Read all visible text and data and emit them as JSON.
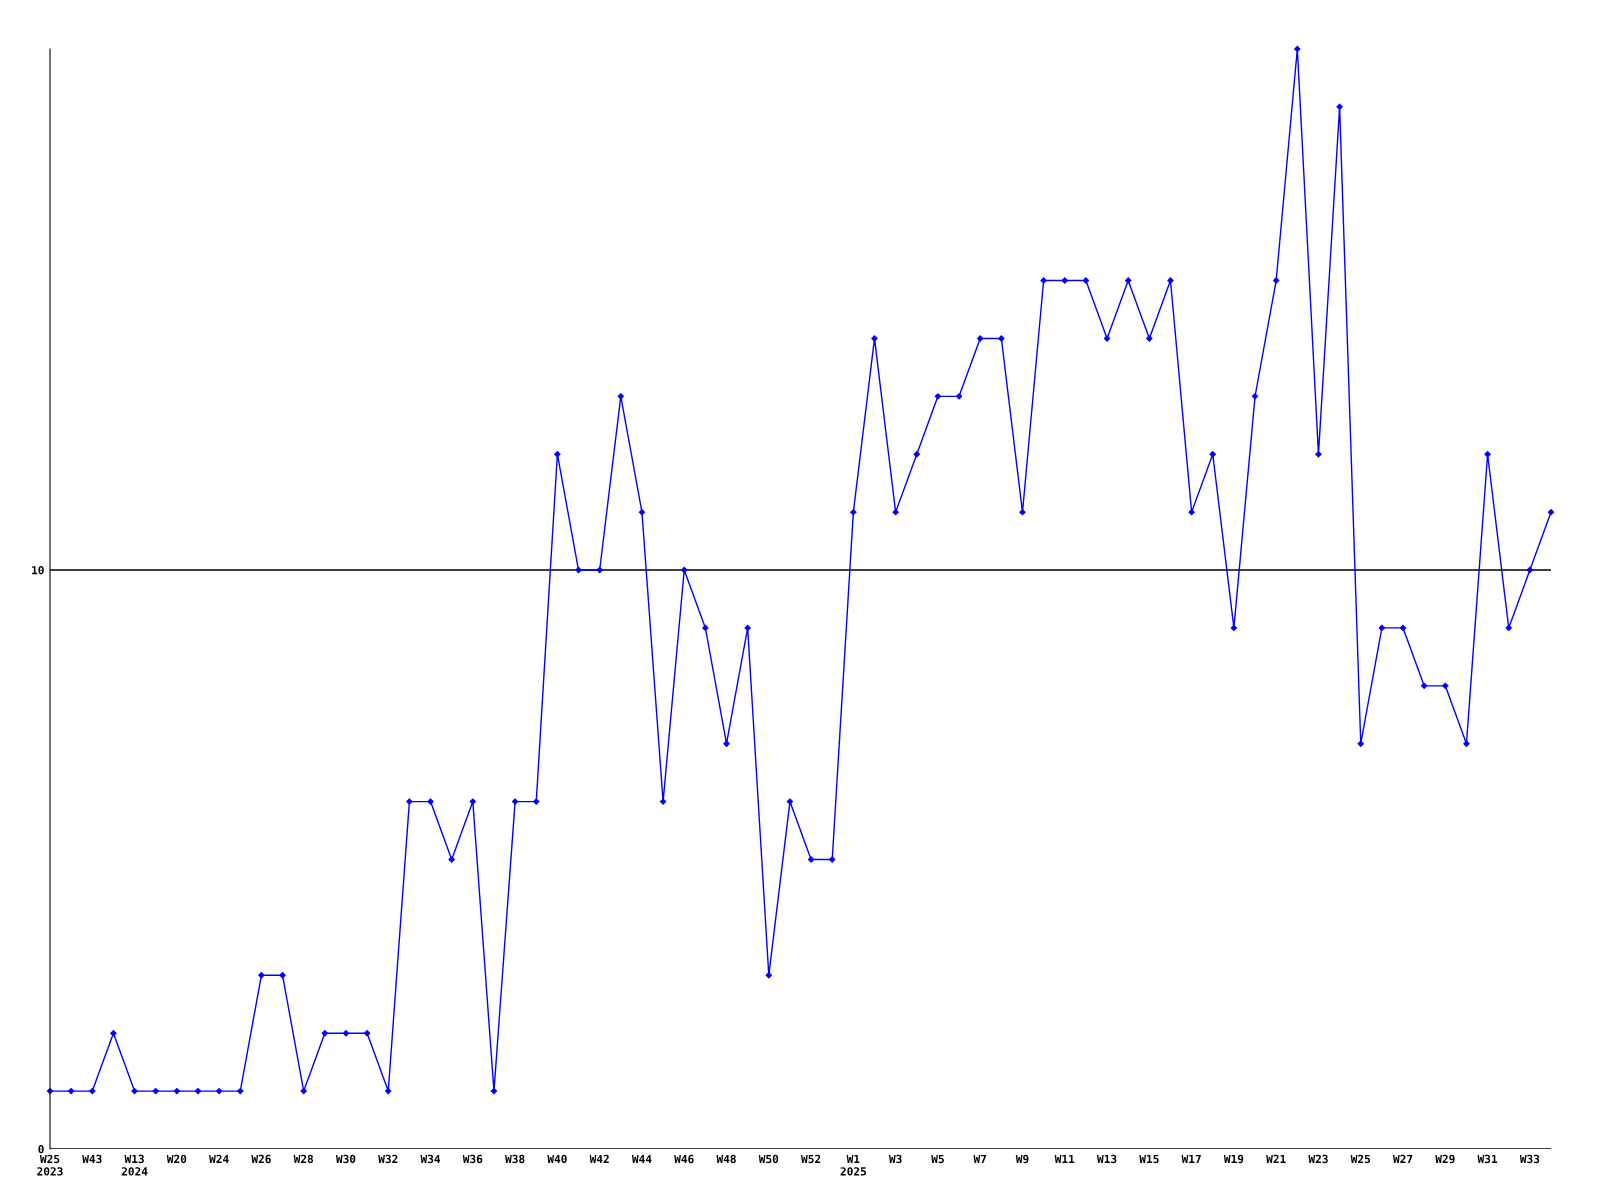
{
  "chart_data": {
    "type": "line",
    "categories": [
      "W25\n2023",
      null,
      "W43",
      null,
      "W13\n2024",
      null,
      "W20",
      null,
      "W24",
      null,
      "W26",
      null,
      "W28",
      null,
      "W30",
      null,
      "W32",
      null,
      "W34",
      null,
      "W36",
      null,
      "W38",
      null,
      "W40",
      null,
      "W42",
      null,
      "W44",
      null,
      "W46",
      null,
      "W48",
      null,
      "W50",
      null,
      "W52",
      null,
      "W1\n2025",
      null,
      "W3",
      null,
      "W5",
      null,
      "W7",
      null,
      "W9",
      null,
      "W11",
      null,
      "W13",
      null,
      "W15",
      null,
      "W17",
      null,
      "W19",
      null,
      "W21",
      null,
      "W23",
      null,
      "W25",
      null,
      "W27",
      null,
      "W29",
      null,
      "W31",
      null,
      "W33",
      null
    ],
    "series": [
      {
        "color": "#0000ff",
        "values": [
          1,
          1,
          1,
          2,
          1,
          1,
          1,
          1,
          1,
          1,
          3,
          3,
          1,
          2,
          2,
          2,
          1,
          6,
          6,
          5,
          6,
          1,
          6,
          6,
          12,
          10,
          10,
          13,
          11,
          6,
          10,
          9,
          7,
          9,
          3,
          6,
          5,
          5,
          11,
          14,
          11,
          12,
          13,
          13,
          14,
          14,
          11,
          15,
          15,
          15,
          14,
          15,
          14,
          15,
          11,
          12,
          9,
          13,
          15,
          19,
          12,
          18,
          7,
          9,
          9,
          8,
          8,
          7,
          12,
          9,
          10,
          11
        ]
      }
    ],
    "ylim": [
      0,
      19
    ],
    "yticks": [
      0,
      10
    ],
    "grid": "y",
    "marker": "diamond",
    "line_style": "solid"
  }
}
